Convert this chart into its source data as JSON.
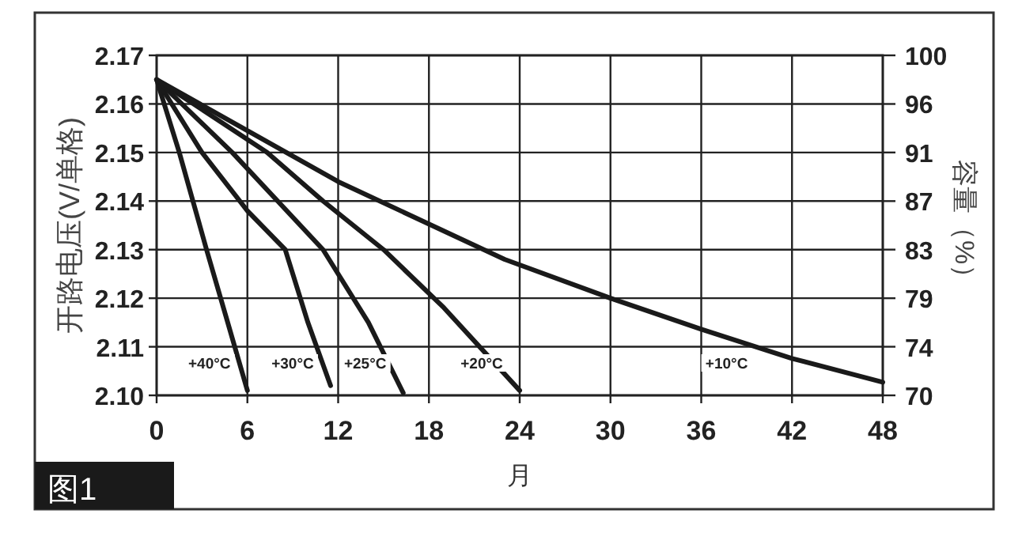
{
  "chart_data": {
    "type": "line",
    "xlabel": "月",
    "ylabel": "开路电压(V/单格)",
    "y2label": "容量（%）",
    "xlim": [
      0,
      48
    ],
    "xticks": [
      0,
      6,
      12,
      18,
      24,
      30,
      36,
      42,
      48
    ],
    "ylim": [
      2.1,
      2.17
    ],
    "yticks": [
      {
        "value": 2.1,
        "label": "2.10"
      },
      2.11,
      2.12,
      2.13,
      2.14,
      2.15,
      2.16,
      2.17
    ],
    "y2lim": [
      70,
      100
    ],
    "y2ticks": [
      {
        "value": 70,
        "label": "70"
      },
      {
        "value": 74.29,
        "label": "74"
      },
      {
        "value": 78.57,
        "label": "79"
      },
      {
        "value": 82.86,
        "label": "83"
      },
      {
        "value": 87.14,
        "label": "87"
      },
      {
        "value": 91.43,
        "label": "91"
      },
      {
        "value": 95.71,
        "label": "96"
      },
      {
        "value": 100,
        "label": "100"
      }
    ],
    "grid": true,
    "marker": "none",
    "line_style": "solid",
    "series": [
      {
        "color": "#1a1a1a",
        "x": [
          0,
          1.5,
          3.3,
          4.7,
          6
        ],
        "values": [
          2.165,
          2.15,
          2.13,
          2.115,
          2.101
        ]
      },
      {
        "color": "#1a1a1a",
        "x": [
          0,
          3,
          6,
          8.5,
          10,
          11.5
        ],
        "values": [
          2.165,
          2.15,
          2.138,
          2.13,
          2.115,
          2.102
        ]
      },
      {
        "color": "#1a1a1a",
        "x": [
          0,
          5,
          8,
          11,
          14,
          16.3
        ],
        "values": [
          2.165,
          2.15,
          2.14,
          2.13,
          2.115,
          2.1005
        ]
      },
      {
        "color": "#1a1a1a",
        "x": [
          0,
          7.3,
          11,
          15,
          19,
          24
        ],
        "values": [
          2.165,
          2.15,
          2.14,
          2.13,
          2.118,
          2.101
        ]
      },
      {
        "color": "#1a1a1a",
        "x": [
          0,
          12,
          23,
          30,
          36,
          42,
          48
        ],
        "values": [
          2.165,
          2.144,
          2.128,
          2.12,
          2.1136,
          2.1076,
          2.1027
        ]
      }
    ],
    "annotations": [
      "+40°C",
      "+30°C",
      "+25°C",
      "+20°C",
      "+10°C",
      "图1"
    ]
  }
}
